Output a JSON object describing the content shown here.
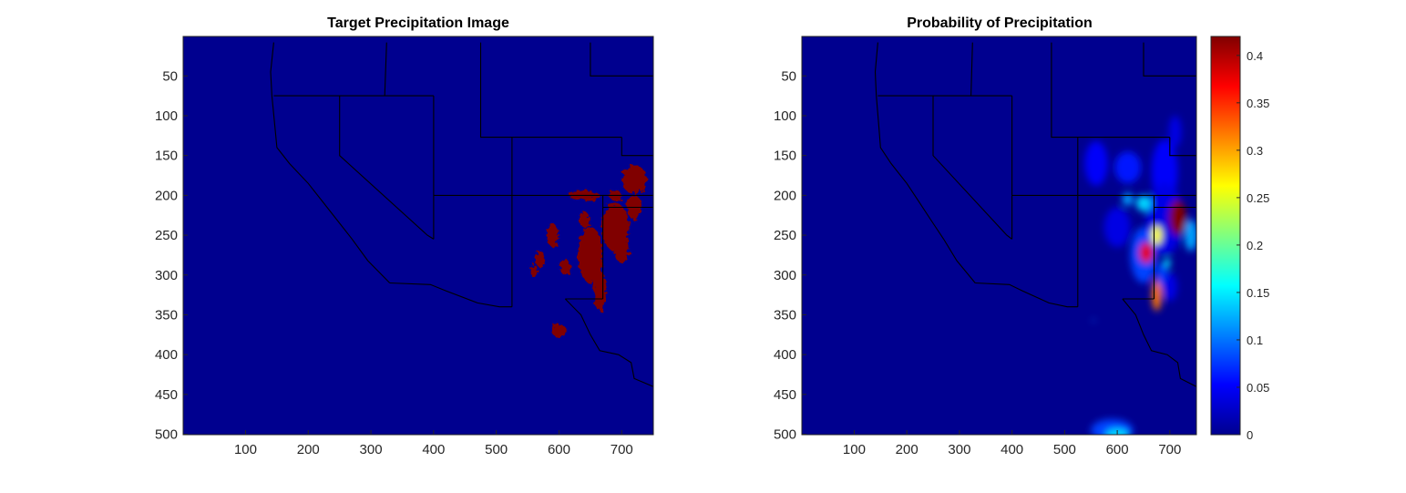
{
  "chart_data": [
    {
      "type": "heatmap",
      "title": "Target Precipitation Image",
      "x_ticks": [
        100,
        200,
        300,
        400,
        500,
        600,
        700
      ],
      "y_ticks": [
        50,
        100,
        150,
        200,
        250,
        300,
        350,
        400,
        450,
        500
      ],
      "xlim": [
        0.5,
        750.5
      ],
      "ylim": [
        0.5,
        500.5
      ],
      "y_reversed": true,
      "grid": false,
      "background_color": "#00008f",
      "value_color": "#800000",
      "precip_regions": [
        {
          "x": 650,
          "y": 275,
          "rx": 20,
          "ry": 35
        },
        {
          "x": 690,
          "y": 240,
          "rx": 22,
          "ry": 30
        },
        {
          "x": 640,
          "y": 200,
          "rx": 25,
          "ry": 6
        },
        {
          "x": 720,
          "y": 180,
          "rx": 20,
          "ry": 18
        },
        {
          "x": 720,
          "y": 215,
          "rx": 12,
          "ry": 15
        },
        {
          "x": 700,
          "y": 270,
          "rx": 12,
          "ry": 14
        },
        {
          "x": 590,
          "y": 250,
          "rx": 10,
          "ry": 14
        },
        {
          "x": 610,
          "y": 290,
          "rx": 8,
          "ry": 10
        },
        {
          "x": 665,
          "y": 320,
          "rx": 10,
          "ry": 25
        },
        {
          "x": 570,
          "y": 280,
          "rx": 8,
          "ry": 10
        },
        {
          "x": 560,
          "y": 295,
          "rx": 6,
          "ry": 8
        },
        {
          "x": 600,
          "y": 370,
          "rx": 12,
          "ry": 8
        },
        {
          "x": 640,
          "y": 230,
          "rx": 8,
          "ry": 10
        },
        {
          "x": 690,
          "y": 200,
          "rx": 10,
          "ry": 6
        }
      ]
    },
    {
      "type": "heatmap",
      "title": "Probability of Precipitation",
      "x_ticks": [
        100,
        200,
        300,
        400,
        500,
        600,
        700
      ],
      "y_ticks": [
        50,
        100,
        150,
        200,
        250,
        300,
        350,
        400,
        450,
        500
      ],
      "xlim": [
        0.5,
        750.5
      ],
      "ylim": [
        0.5,
        500.5
      ],
      "y_reversed": true,
      "grid": false,
      "colormap": "jet",
      "clim": [
        0,
        0.42
      ],
      "colorbar_ticks": [
        0,
        0.05,
        0.1,
        0.15,
        0.2,
        0.25,
        0.3,
        0.35,
        0.4
      ],
      "colorbar_tick_labels": [
        "0",
        "0.05",
        "0.1",
        "0.15",
        "0.2",
        "0.25",
        "0.3",
        "0.35",
        "0.4"
      ],
      "probability_regions": [
        {
          "x": 560,
          "y": 160,
          "rx": 22,
          "ry": 28,
          "value": 0.05
        },
        {
          "x": 620,
          "y": 165,
          "rx": 25,
          "ry": 20,
          "value": 0.06
        },
        {
          "x": 690,
          "y": 170,
          "rx": 25,
          "ry": 40,
          "value": 0.05
        },
        {
          "x": 690,
          "y": 230,
          "rx": 35,
          "ry": 45,
          "value": 0.04
        },
        {
          "x": 710,
          "y": 120,
          "rx": 12,
          "ry": 20,
          "value": 0.04
        },
        {
          "x": 600,
          "y": 240,
          "rx": 25,
          "ry": 25,
          "value": 0.04
        },
        {
          "x": 650,
          "y": 275,
          "rx": 25,
          "ry": 35,
          "value": 0.08
        },
        {
          "x": 650,
          "y": 210,
          "rx": 14,
          "ry": 10,
          "value": 0.14
        },
        {
          "x": 740,
          "y": 250,
          "rx": 12,
          "ry": 20,
          "value": 0.12
        },
        {
          "x": 620,
          "y": 205,
          "rx": 10,
          "ry": 8,
          "value": 0.12
        },
        {
          "x": 715,
          "y": 228,
          "rx": 16,
          "ry": 22,
          "value": 0.42
        },
        {
          "x": 675,
          "y": 250,
          "rx": 10,
          "ry": 12,
          "value": 0.26
        },
        {
          "x": 655,
          "y": 272,
          "rx": 13,
          "ry": 13,
          "value": 0.38
        },
        {
          "x": 675,
          "y": 325,
          "rx": 9,
          "ry": 20,
          "value": 0.32
        },
        {
          "x": 695,
          "y": 285,
          "rx": 6,
          "ry": 6,
          "value": 0.15
        },
        {
          "x": 685,
          "y": 300,
          "rx": 10,
          "ry": 15,
          "value": 0.08
        },
        {
          "x": 700,
          "y": 315,
          "rx": 14,
          "ry": 18,
          "value": 0.04
        },
        {
          "x": 590,
          "y": 495,
          "rx": 40,
          "ry": 14,
          "value": 0.08
        },
        {
          "x": 600,
          "y": 500,
          "rx": 22,
          "ry": 7,
          "value": 0.14
        },
        {
          "x": 555,
          "y": 357,
          "rx": 2,
          "ry": 2,
          "value": 0.1
        }
      ]
    }
  ]
}
